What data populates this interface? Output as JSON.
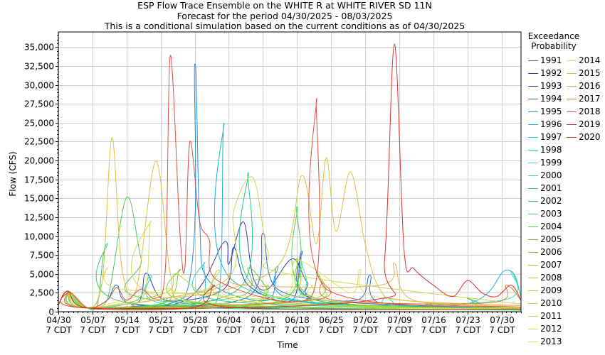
{
  "titles": {
    "line1": "ESP Flow Trace Ensemble on the WHITE R at WHITE RIVER SD 11N",
    "line2": "Forecast for the period 04/30/2025 - 08/03/2025",
    "line3": "This is a conditional simulation based on the current conditions as of 04/30/2025"
  },
  "legend": {
    "title_line1": "Exceedance",
    "title_line2": "Probability"
  },
  "chart_data": {
    "type": "line",
    "title": "ESP Flow Trace Ensemble on the WHITE R at WHITE RIVER SD 11N",
    "xlabel": "Time",
    "ylabel": "Flow (CFS)",
    "xlim": [
      "2025-04-30",
      "2025-08-03"
    ],
    "ylim": [
      0,
      37000
    ],
    "grid": true,
    "legend_position": "right",
    "x_ticks": [
      {
        "date": "2025-04-30",
        "line1": "04/30",
        "line2": "7 CDT"
      },
      {
        "date": "2025-05-07",
        "line1": "05/07",
        "line2": "7 CDT"
      },
      {
        "date": "2025-05-14",
        "line1": "05/14",
        "line2": "7 CDT"
      },
      {
        "date": "2025-05-21",
        "line1": "05/21",
        "line2": "7 CDT"
      },
      {
        "date": "2025-05-28",
        "line1": "05/28",
        "line2": "7 CDT"
      },
      {
        "date": "2025-06-04",
        "line1": "06/04",
        "line2": "7 CDT"
      },
      {
        "date": "2025-06-11",
        "line1": "06/11",
        "line2": "7 CDT"
      },
      {
        "date": "2025-06-18",
        "line1": "06/18",
        "line2": "7 CDT"
      },
      {
        "date": "2025-06-25",
        "line1": "06/25",
        "line2": "7 CDT"
      },
      {
        "date": "2025-07-02",
        "line1": "07/02",
        "line2": "7 CDT"
      },
      {
        "date": "2025-07-09",
        "line1": "07/09",
        "line2": "7 CDT"
      },
      {
        "date": "2025-07-16",
        "line1": "07/16",
        "line2": "7 CDT"
      },
      {
        "date": "2025-07-23",
        "line1": "07/23",
        "line2": "7 CDT"
      },
      {
        "date": "2025-07-30",
        "line1": "07/30",
        "line2": "7 CDT"
      }
    ],
    "y_ticks": [
      {
        "value": 0,
        "label": "0"
      },
      {
        "value": 2500,
        "label": "2,500"
      },
      {
        "value": 5000,
        "label": "5,000"
      },
      {
        "value": 7500,
        "label": "7,500"
      },
      {
        "value": 10000,
        "label": "10,000"
      },
      {
        "value": 12500,
        "label": "12,500"
      },
      {
        "value": 15000,
        "label": "15,000"
      },
      {
        "value": 17500,
        "label": "17,500"
      },
      {
        "value": 20000,
        "label": "20,000"
      },
      {
        "value": 22500,
        "label": "22,500"
      },
      {
        "value": 25000,
        "label": "25,000"
      },
      {
        "value": 27500,
        "label": "27,500"
      },
      {
        "value": 30000,
        "label": "30,000"
      },
      {
        "value": 32500,
        "label": "32,500"
      },
      {
        "value": 35000,
        "label": "35,000"
      }
    ],
    "series": [
      {
        "name": "1991",
        "color": "#6a5acd",
        "x": [
          "2025-04-30",
          "2025-05-02",
          "2025-05-06",
          "2025-05-20",
          "2025-06-15",
          "2025-07-10",
          "2025-07-15",
          "2025-07-18",
          "2025-08-03"
        ],
        "values": [
          900,
          2700,
          500,
          800,
          500,
          300,
          1000,
          500,
          200
        ]
      },
      {
        "name": "1992",
        "color": "#3a3ab0",
        "x": [
          "2025-04-30",
          "2025-05-02",
          "2025-05-06",
          "2025-05-26",
          "2025-06-03",
          "2025-06-04",
          "2025-06-07",
          "2025-06-09",
          "2025-06-12",
          "2025-06-17",
          "2025-06-20",
          "2025-06-24",
          "2025-08-03"
        ],
        "values": [
          900,
          2700,
          500,
          1500,
          9200,
          6300,
          11900,
          4500,
          3000,
          7000,
          4000,
          1500,
          300
        ]
      },
      {
        "name": "1993",
        "color": "#2040c8",
        "x": [
          "2025-04-30",
          "2025-05-02",
          "2025-05-06",
          "2025-05-16",
          "2025-05-18",
          "2025-05-22",
          "2025-06-03",
          "2025-06-05",
          "2025-06-08",
          "2025-06-17",
          "2025-06-19",
          "2025-06-22",
          "2025-08-03"
        ],
        "values": [
          900,
          2700,
          500,
          1000,
          5100,
          1500,
          3000,
          8500,
          3500,
          1500,
          8000,
          1500,
          500
        ]
      },
      {
        "name": "1994",
        "color": "#1a6ad8",
        "x": [
          "2025-04-30",
          "2025-05-02",
          "2025-05-06",
          "2025-05-10",
          "2025-05-12",
          "2025-05-16",
          "2025-06-08",
          "2025-06-11",
          "2025-06-14",
          "2025-06-30",
          "2025-07-03",
          "2025-07-06",
          "2025-08-03"
        ],
        "values": [
          900,
          2700,
          500,
          1500,
          3500,
          900,
          2000,
          10400,
          3000,
          1500,
          4800,
          900,
          300
        ]
      },
      {
        "name": "1995",
        "color": "#2090e0",
        "x": [
          "2025-04-30",
          "2025-05-02",
          "2025-05-06",
          "2025-05-26",
          "2025-05-28",
          "2025-05-29",
          "2025-05-31",
          "2025-06-12",
          "2025-06-14",
          "2025-06-18",
          "2025-08-03"
        ],
        "values": [
          900,
          2700,
          500,
          2000,
          32700,
          12000,
          4000,
          1500,
          6000,
          1500,
          500
        ]
      },
      {
        "name": "1996",
        "color": "#20b0d8",
        "x": [
          "2025-04-30",
          "2025-05-02",
          "2025-05-06",
          "2025-05-28",
          "2025-06-02",
          "2025-06-03",
          "2025-06-05",
          "2025-07-20",
          "2025-07-31",
          "2025-08-03"
        ],
        "values": [
          900,
          2700,
          500,
          1200,
          2500,
          24900,
          4000,
          800,
          5500,
          2000
        ]
      },
      {
        "name": "1997",
        "color": "#30c8c8",
        "x": [
          "2025-04-30",
          "2025-05-02",
          "2025-05-06",
          "2025-05-28",
          "2025-05-30",
          "2025-06-02",
          "2025-08-03"
        ],
        "values": [
          900,
          2700,
          500,
          1000,
          6500,
          1500,
          400
        ]
      },
      {
        "name": "1998",
        "color": "#20d8b0",
        "x": [
          "2025-04-30",
          "2025-05-02",
          "2025-05-06",
          "2025-05-16",
          "2025-05-19",
          "2025-05-22",
          "2025-07-04",
          "2025-07-06",
          "2025-07-08",
          "2025-08-03"
        ],
        "values": [
          900,
          2700,
          500,
          1500,
          4800,
          1000,
          600,
          2000,
          600,
          300
        ]
      },
      {
        "name": "1999",
        "color": "#40e0c0",
        "x": [
          "2025-04-30",
          "2025-05-02",
          "2025-05-06",
          "2025-06-16",
          "2025-06-19",
          "2025-06-22",
          "2025-07-30",
          "2025-08-01",
          "2025-08-03"
        ],
        "values": [
          900,
          2700,
          500,
          1500,
          6500,
          1200,
          1500,
          5200,
          2000
        ]
      },
      {
        "name": "2000",
        "color": "#30e098",
        "x": [
          "2025-04-30",
          "2025-05-02",
          "2025-05-06",
          "2025-05-20",
          "2025-05-24",
          "2025-06-05",
          "2025-08-03"
        ],
        "values": [
          900,
          2700,
          500,
          900,
          2000,
          700,
          200
        ]
      },
      {
        "name": "2001",
        "color": "#28d080",
        "x": [
          "2025-04-30",
          "2025-05-02",
          "2025-05-06",
          "2025-06-06",
          "2025-06-08",
          "2025-06-11",
          "2025-08-03"
        ],
        "values": [
          900,
          2700,
          500,
          3000,
          18400,
          2500,
          300
        ]
      },
      {
        "name": "2002",
        "color": "#38c870",
        "x": [
          "2025-04-30",
          "2025-05-02",
          "2025-05-06",
          "2025-05-08",
          "2025-05-10",
          "2025-05-14",
          "2025-07-20",
          "2025-07-23",
          "2025-07-26",
          "2025-08-03"
        ],
        "values": [
          900,
          2700,
          500,
          800,
          9000,
          1200,
          400,
          1800,
          500,
          300
        ]
      },
      {
        "name": "2003",
        "color": "#48c860",
        "x": [
          "2025-04-30",
          "2025-05-02",
          "2025-05-06",
          "2025-05-10",
          "2025-05-14",
          "2025-05-17",
          "2025-05-20",
          "2025-08-03"
        ],
        "values": [
          900,
          2700,
          500,
          1500,
          15100,
          7000,
          1500,
          300
        ]
      },
      {
        "name": "2004",
        "color": "#50d050",
        "x": [
          "2025-04-30",
          "2025-05-02",
          "2025-05-06",
          "2025-06-15",
          "2025-06-18",
          "2025-06-21",
          "2025-08-03"
        ],
        "values": [
          900,
          2700,
          500,
          1500,
          13900,
          2000,
          400
        ]
      },
      {
        "name": "2005",
        "color": "#60c840",
        "x": [
          "2025-04-30",
          "2025-05-02",
          "2025-05-06",
          "2025-06-06",
          "2025-06-08",
          "2025-06-12",
          "2025-06-15",
          "2025-08-03"
        ],
        "values": [
          900,
          2700,
          500,
          2000,
          5800,
          3000,
          800,
          300
        ]
      },
      {
        "name": "2006",
        "color": "#70d030",
        "x": [
          "2025-04-30",
          "2025-05-02",
          "2025-05-06",
          "2025-05-22",
          "2025-05-25",
          "2025-05-28",
          "2025-08-03"
        ],
        "values": [
          900,
          2700,
          500,
          1200,
          5600,
          1200,
          300
        ]
      },
      {
        "name": "2007",
        "color": "#88d028",
        "x": [
          "2025-04-30",
          "2025-05-02",
          "2025-05-06",
          "2025-06-15",
          "2025-06-18",
          "2025-06-22",
          "2025-08-03"
        ],
        "values": [
          900,
          2700,
          500,
          2000,
          7000,
          1500,
          400
        ]
      },
      {
        "name": "2008",
        "color": "#98d830",
        "x": [
          "2025-04-30",
          "2025-05-02",
          "2025-05-06",
          "2025-06-20",
          "2025-06-22",
          "2025-06-24",
          "2025-06-27",
          "2025-08-03"
        ],
        "values": [
          900,
          2700,
          500,
          1500,
          5200,
          2500,
          800,
          300
        ]
      },
      {
        "name": "2009",
        "color": "#a8d838",
        "x": [
          "2025-04-30",
          "2025-05-02",
          "2025-05-06",
          "2025-06-08",
          "2025-06-12",
          "2025-06-16",
          "2025-08-03"
        ],
        "values": [
          900,
          2700,
          500,
          1000,
          3500,
          1200,
          300
        ]
      },
      {
        "name": "2010",
        "color": "#b8d840",
        "x": [
          "2025-04-30",
          "2025-05-02",
          "2025-05-06",
          "2025-05-22",
          "2025-05-24",
          "2025-05-30",
          "2025-06-02",
          "2025-06-06",
          "2025-08-03"
        ],
        "values": [
          900,
          2700,
          500,
          2500,
          5000,
          2500,
          5500,
          1500,
          300
        ]
      },
      {
        "name": "2011",
        "color": "#c8d850",
        "x": [
          "2025-04-30",
          "2025-05-02",
          "2025-05-06",
          "2025-06-03",
          "2025-06-05",
          "2025-06-09",
          "2025-06-12",
          "2025-06-16",
          "2025-08-03"
        ],
        "values": [
          900,
          2700,
          500,
          4000,
          13300,
          17700,
          8000,
          5000,
          1000
        ]
      },
      {
        "name": "2012",
        "color": "#d8d858",
        "x": [
          "2025-04-30",
          "2025-05-02",
          "2025-05-06",
          "2025-05-17",
          "2025-05-19",
          "2025-05-21",
          "2025-08-03"
        ],
        "values": [
          900,
          2700,
          500,
          1500,
          12000,
          2000,
          300
        ]
      },
      {
        "name": "2013",
        "color": "#e0e060",
        "x": [
          "2025-04-30",
          "2025-05-02",
          "2025-05-06",
          "2025-05-22",
          "2025-05-25",
          "2025-06-15",
          "2025-06-18",
          "2025-06-29",
          "2025-07-01",
          "2025-07-04",
          "2025-08-03"
        ],
        "values": [
          900,
          2700,
          500,
          3000,
          2500,
          2000,
          6800,
          2500,
          5600,
          2000,
          500
        ]
      },
      {
        "name": "2014",
        "color": "#d8e070",
        "x": [
          "2025-04-30",
          "2025-05-02",
          "2025-05-06",
          "2025-05-08",
          "2025-05-10",
          "2025-05-13",
          "2025-06-18",
          "2025-06-21",
          "2025-06-24",
          "2025-08-03"
        ],
        "values": [
          900,
          2700,
          500,
          1500,
          5800,
          3000,
          2000,
          3500,
          1500,
          500
        ]
      },
      {
        "name": "2015",
        "color": "#e0c040",
        "x": [
          "2025-04-30",
          "2025-05-02",
          "2025-05-06",
          "2025-05-09",
          "2025-05-11",
          "2025-05-13",
          "2025-05-16",
          "2025-05-20",
          "2025-05-23",
          "2025-05-26",
          "2025-06-14",
          "2025-06-19",
          "2025-06-22",
          "2025-06-24",
          "2025-06-26",
          "2025-06-29",
          "2025-07-02",
          "2025-07-05",
          "2025-07-10",
          "2025-08-03"
        ],
        "values": [
          900,
          2700,
          500,
          4000,
          23000,
          6000,
          3000,
          19900,
          5000,
          2000,
          6000,
          18000,
          9000,
          20400,
          10600,
          18500,
          9000,
          3000,
          1500,
          800
        ]
      },
      {
        "name": "2016",
        "color": "#e8b060",
        "x": [
          "2025-04-30",
          "2025-05-02",
          "2025-05-06",
          "2025-06-01",
          "2025-06-04",
          "2025-06-07",
          "2025-07-05",
          "2025-07-08",
          "2025-07-12",
          "2025-08-03"
        ],
        "values": [
          900,
          2700,
          500,
          3000,
          5000,
          3500,
          3500,
          6400,
          1500,
          800
        ]
      },
      {
        "name": "2017",
        "color": "#e07830",
        "x": [
          "2025-04-30",
          "2025-05-02",
          "2025-05-06",
          "2025-06-21",
          "2025-06-23",
          "2025-06-26",
          "2025-07-28",
          "2025-07-31",
          "2025-08-03"
        ],
        "values": [
          900,
          2700,
          500,
          1500,
          4000,
          1500,
          1200,
          3500,
          1500
        ]
      },
      {
        "name": "2018",
        "color": "#e05040",
        "x": [
          "2025-04-30",
          "2025-05-02",
          "2025-05-06",
          "2025-05-10",
          "2025-05-12",
          "2025-05-14",
          "2025-05-17",
          "2025-05-20",
          "2025-05-22",
          "2025-05-23",
          "2025-05-25",
          "2025-05-26",
          "2025-05-27",
          "2025-05-29",
          "2025-05-31",
          "2025-06-02",
          "2025-06-21",
          "2025-06-22",
          "2025-06-24",
          "2025-08-03"
        ],
        "values": [
          900,
          2700,
          500,
          1500,
          3200,
          1500,
          3000,
          1800,
          6000,
          33900,
          10000,
          6000,
          22500,
          12000,
          9500,
          4000,
          2000,
          28200,
          3000,
          600
        ]
      },
      {
        "name": "2019",
        "color": "#d83030",
        "x": [
          "2025-04-30",
          "2025-05-02",
          "2025-05-06",
          "2025-07-03",
          "2025-07-06",
          "2025-07-08",
          "2025-07-10",
          "2025-07-12",
          "2025-07-16",
          "2025-07-20",
          "2025-07-23",
          "2025-07-26",
          "2025-07-29",
          "2025-08-01",
          "2025-08-03"
        ],
        "values": [
          900,
          2700,
          500,
          1500,
          7000,
          35400,
          8000,
          5700,
          3500,
          2000,
          4100,
          2500,
          2000,
          3500,
          1500
        ]
      },
      {
        "name": "2020",
        "color": "#c04010",
        "x": [
          "2025-04-30",
          "2025-05-02",
          "2025-05-06",
          "2025-05-28",
          "2025-06-01",
          "2025-06-04",
          "2025-08-03"
        ],
        "values": [
          900,
          2700,
          500,
          600,
          3500,
          600,
          300
        ]
      }
    ]
  }
}
